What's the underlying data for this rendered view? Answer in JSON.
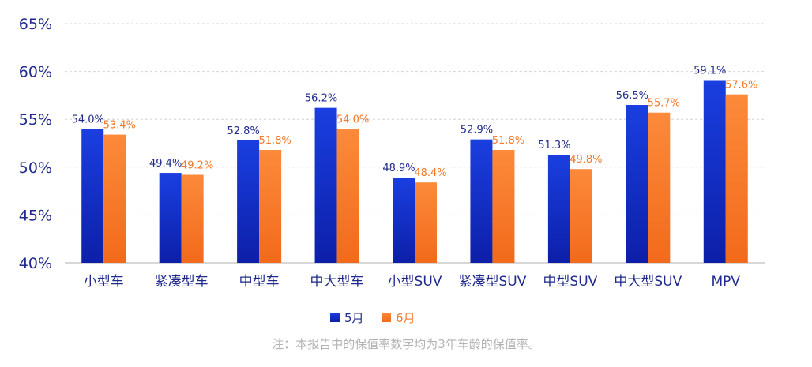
{
  "chart_data": {
    "type": "bar",
    "categories": [
      "小型车",
      "紧凑型车",
      "中型车",
      "中大型车",
      "小型SUV",
      "紧凑型SUV",
      "中型SUV",
      "中大型SUV",
      "MPV"
    ],
    "series": [
      {
        "name": "5月",
        "values": [
          54.0,
          49.4,
          52.8,
          56.2,
          48.9,
          52.9,
          51.3,
          56.5,
          59.1
        ],
        "labels": [
          "54.0%",
          "49.4%",
          "52.8%",
          "56.2%",
          "48.9%",
          "52.9%",
          "51.3%",
          "56.5%",
          "59.1%"
        ],
        "color_top": "#1a3fe0",
        "color_bottom": "#0d1fa8",
        "label_color": "#1f2a8c"
      },
      {
        "name": "6月",
        "values": [
          53.4,
          49.2,
          51.8,
          54.0,
          48.4,
          51.8,
          49.8,
          55.7,
          57.6
        ],
        "labels": [
          "53.4%",
          "49.2%",
          "51.8%",
          "54.0%",
          "48.4%",
          "51.8%",
          "49.8%",
          "55.7%",
          "57.6%"
        ],
        "color_top": "#fb8a3a",
        "color_bottom": "#f26a1b",
        "label_color": "#f07a2a"
      }
    ],
    "ylim": [
      40,
      65
    ],
    "yticks": [
      40,
      45,
      50,
      55,
      60,
      65
    ],
    "ytick_labels": [
      "40%",
      "45%",
      "50%",
      "55%",
      "60%",
      "65%"
    ],
    "grid": true,
    "legend_position": "bottom-center"
  },
  "footnote": "注：本报告中的保值率数字均为3年车龄的保值率。"
}
